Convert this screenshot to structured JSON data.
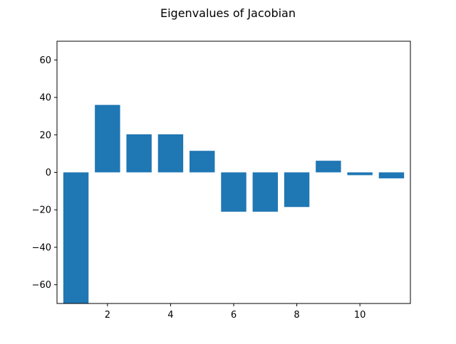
{
  "chart_data": {
    "type": "bar",
    "title": "Eigenvalues of Jacobian",
    "xlabel": "",
    "ylabel": "",
    "x": [
      1,
      2,
      3,
      4,
      5,
      6,
      7,
      8,
      9,
      10,
      11
    ],
    "values": [
      -70,
      36,
      20.3,
      20.3,
      11.5,
      -21,
      -21,
      -18.5,
      6.2,
      -1.5,
      -3.2
    ],
    "xlim": [
      0.4,
      11.6
    ],
    "ylim": [
      -70,
      70
    ],
    "xticks": [
      2,
      4,
      6,
      8,
      10
    ],
    "xtick_labels": [
      "2",
      "4",
      "6",
      "8",
      "10"
    ],
    "yticks": [
      60,
      40,
      20,
      0,
      -20,
      -40,
      -60
    ],
    "ytick_labels": [
      "60",
      "40",
      "20",
      "0",
      "−20",
      "−40",
      "−60"
    ],
    "bar_color": "#1f77b4",
    "grid": false,
    "legend": "none"
  }
}
